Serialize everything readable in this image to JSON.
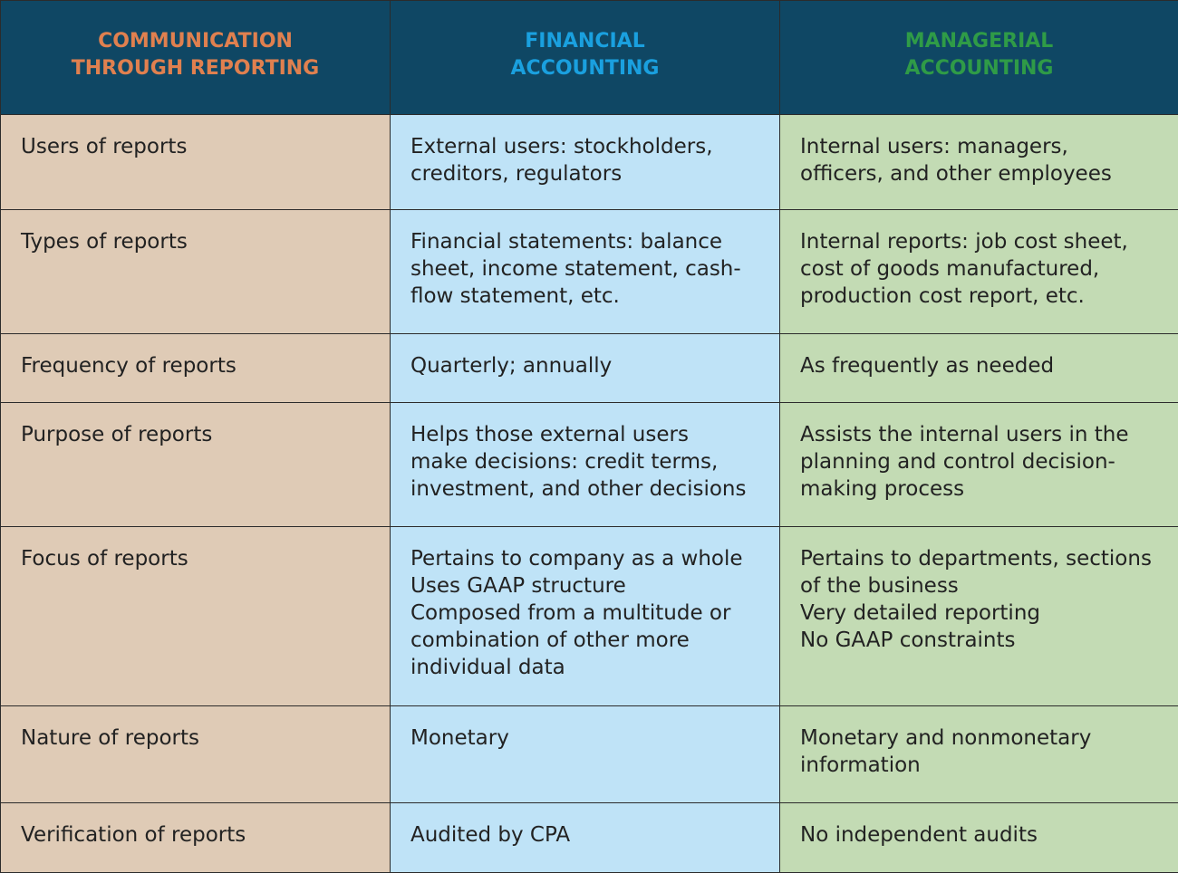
{
  "table": {
    "header": [
      [
        "COMMUNICATION",
        "THROUGH REPORTING"
      ],
      [
        "FINANCIAL",
        "ACCOUNTING"
      ],
      [
        "MANAGERIAL",
        "ACCOUNTING"
      ]
    ],
    "rows": [
      [
        [
          "Users of reports"
        ],
        [
          "External users: stockholders,",
          "creditors, regulators"
        ],
        [
          "Internal users: managers,",
          "officers, and other employees"
        ]
      ],
      [
        [
          "Types of reports"
        ],
        [
          "Financial statements: balance",
          "sheet, income statement, cash-",
          "flow statement, etc."
        ],
        [
          "Internal reports: job cost sheet,",
          "cost of goods manufactured,",
          "production cost report, etc."
        ]
      ],
      [
        [
          "Frequency of reports"
        ],
        [
          "Quarterly; annually"
        ],
        [
          "As frequently as needed"
        ]
      ],
      [
        [
          "Purpose of reports"
        ],
        [
          "Helps those external users",
          "make decisions: credit terms,",
          "investment, and other decisions"
        ],
        [
          "Assists the internal users in the",
          "planning and control decision-",
          "making process"
        ]
      ],
      [
        [
          "Focus of reports"
        ],
        [
          "Pertains to company as a whole",
          "Uses GAAP structure",
          "Composed from a multitude or",
          "combination of other more",
          "individual data"
        ],
        [
          "Pertains to departments, sections",
          "of the business",
          "Very detailed reporting",
          "No GAAP constraints"
        ]
      ],
      [
        [
          "Nature of reports"
        ],
        [
          "Monetary"
        ],
        [
          "Monetary and nonmonetary",
          "information"
        ]
      ],
      [
        [
          "Verification of reports"
        ],
        [
          "Audited by CPA"
        ],
        [
          "No independent audits"
        ]
      ]
    ]
  }
}
